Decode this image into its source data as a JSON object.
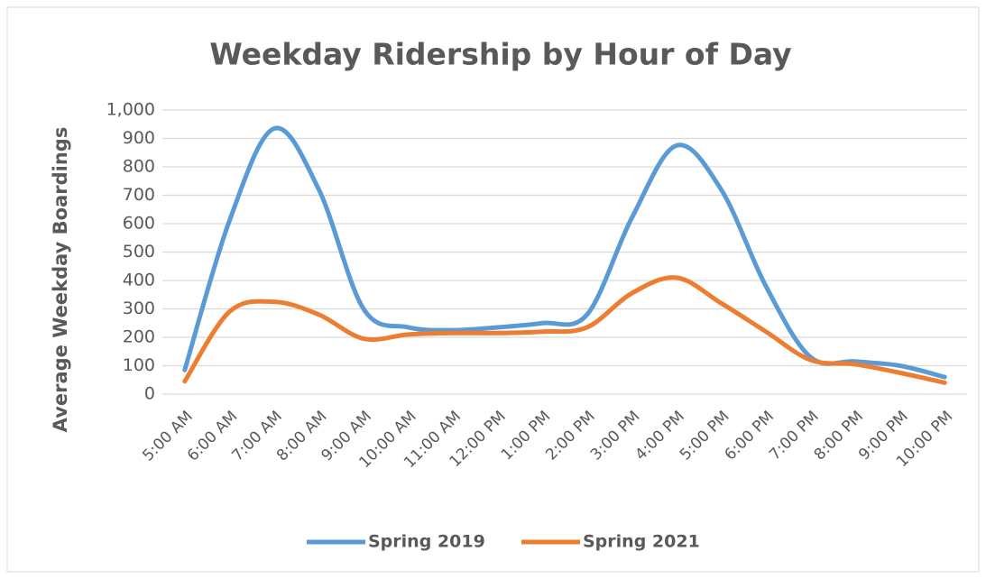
{
  "chart_data": {
    "type": "line",
    "title": "Weekday Ridership by Hour of Day",
    "y_label": "Average Weekday Boardings",
    "categories": [
      "5:00 AM",
      "6:00 AM",
      "7:00 AM",
      "8:00 AM",
      "9:00 AM",
      "10:00 AM",
      "11:00 AM",
      "12:00 PM",
      "1:00 PM",
      "2:00 PM",
      "3:00 PM",
      "4:00 PM",
      "5:00 PM",
      "6:00 PM",
      "7:00 PM",
      "8:00 PM",
      "9:00 PM",
      "10:00 PM"
    ],
    "series": [
      {
        "name": "Spring 2019",
        "color": "#5b9bd5",
        "values": [
          85,
          610,
          935,
          720,
          300,
          235,
          225,
          235,
          250,
          280,
          620,
          875,
          720,
          380,
          130,
          115,
          100,
          60
        ]
      },
      {
        "name": "Spring 2021",
        "color": "#ed7d31",
        "values": [
          45,
          290,
          325,
          280,
          195,
          210,
          215,
          215,
          220,
          235,
          355,
          410,
          320,
          220,
          120,
          105,
          75,
          40
        ]
      }
    ],
    "ylim": [
      0,
      1000
    ],
    "yticks": [
      0,
      100,
      200,
      300,
      400,
      500,
      600,
      700,
      800,
      900,
      {
        "value": 1000,
        "label": "1,000"
      }
    ],
    "grid": true,
    "smooth": true,
    "legend": "bottom"
  }
}
